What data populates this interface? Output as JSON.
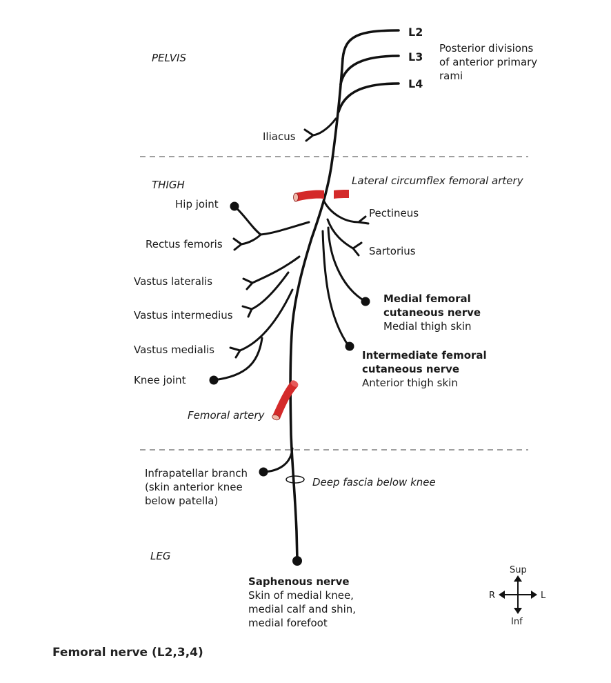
{
  "regions": {
    "pelvis": "PELVIS",
    "thigh": "THIGH",
    "leg": "LEG"
  },
  "roots": {
    "l2": "L2",
    "l3": "L3",
    "l4": "L4"
  },
  "root_note": [
    "Posterior divisions",
    "of anterior primary",
    "rami"
  ],
  "branches": {
    "iliacus": "Iliacus",
    "hip_joint": "Hip joint",
    "rectus_femoris": "Rectus femoris",
    "vastus_lateralis": "Vastus lateralis",
    "vastus_intermedius": "Vastus intermedius",
    "vastus_medialis": "Vastus medialis",
    "knee_joint": "Knee joint",
    "pectineus": "Pectineus",
    "sartorius": "Sartorius",
    "medial_femoral_title": [
      "Medial femoral",
      "cutaneous nerve"
    ],
    "medial_femoral_sub": "Medial thigh skin",
    "intermediate_femoral_title": [
      "Intermediate femoral",
      "cutaneous nerve"
    ],
    "intermediate_femoral_sub": "Anterior thigh skin",
    "infrapatellar": [
      "Infrapatellar branch",
      "(skin anterior knee",
      "below patella)"
    ],
    "saphenous_title": "Saphenous nerve",
    "saphenous_sub": [
      "Skin of medial knee,",
      "medial calf and shin,",
      "medial forefoot"
    ]
  },
  "annotations": {
    "lateral_circumflex": "Lateral circumflex femoral artery",
    "femoral_artery": "Femoral artery",
    "deep_fascia": "Deep fascia below knee"
  },
  "compass": {
    "sup": "Sup",
    "inf": "Inf",
    "r": "R",
    "l": "L"
  },
  "caption": "Femoral nerve (L2,3,4)",
  "colors": {
    "artery": "#d42a2a",
    "nerve": "#111111"
  }
}
